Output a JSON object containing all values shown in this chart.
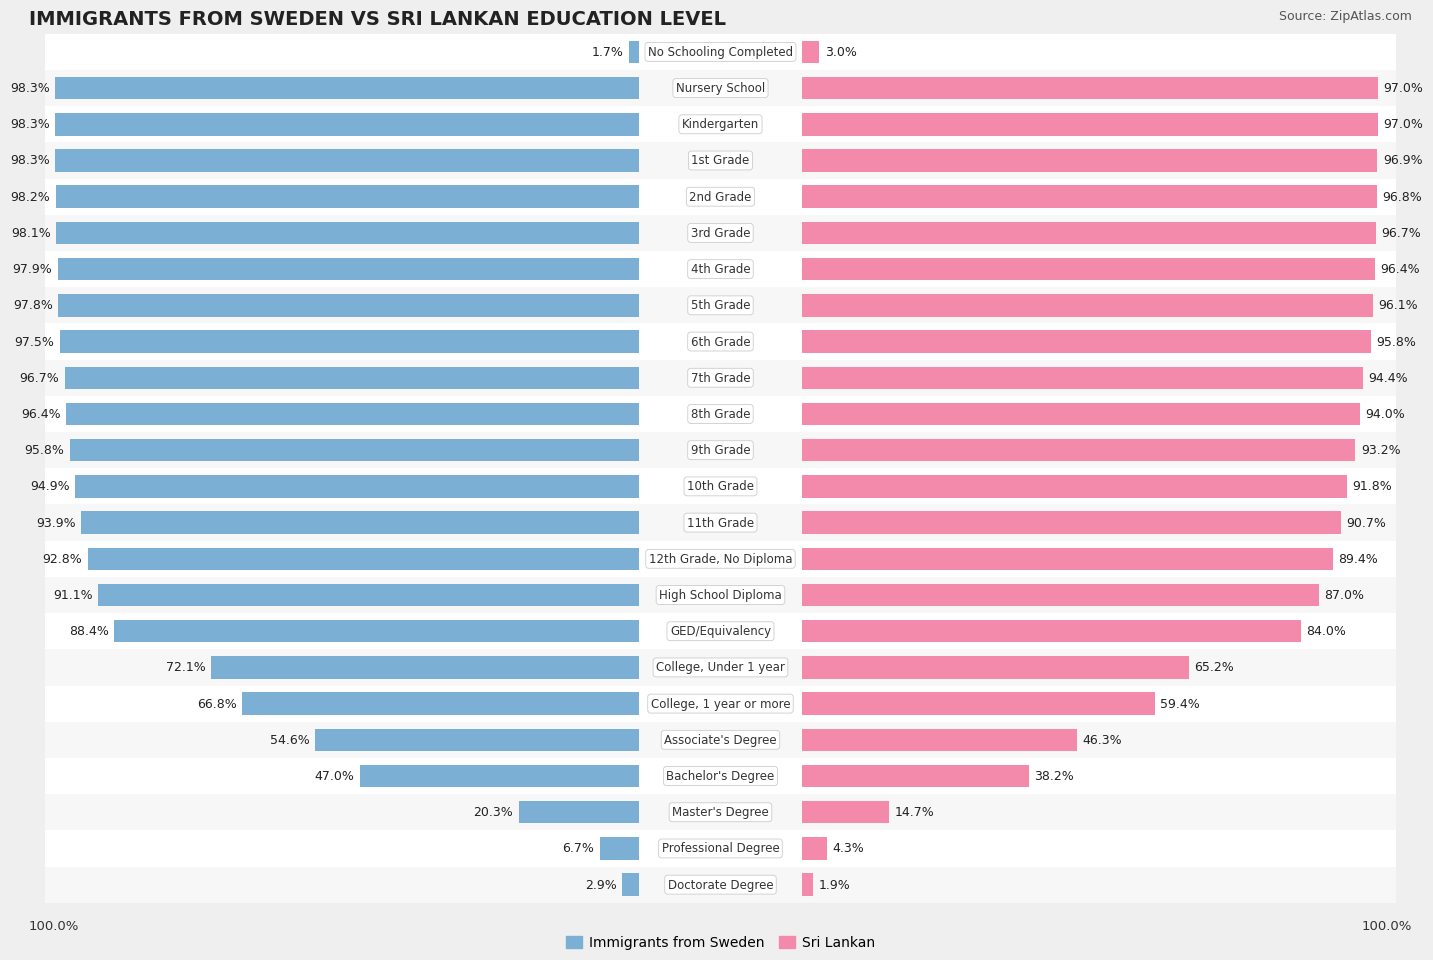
{
  "title": "IMMIGRANTS FROM SWEDEN VS SRI LANKAN EDUCATION LEVEL",
  "source": "Source: ZipAtlas.com",
  "categories": [
    "No Schooling Completed",
    "Nursery School",
    "Kindergarten",
    "1st Grade",
    "2nd Grade",
    "3rd Grade",
    "4th Grade",
    "5th Grade",
    "6th Grade",
    "7th Grade",
    "8th Grade",
    "9th Grade",
    "10th Grade",
    "11th Grade",
    "12th Grade, No Diploma",
    "High School Diploma",
    "GED/Equivalency",
    "College, Under 1 year",
    "College, 1 year or more",
    "Associate's Degree",
    "Bachelor's Degree",
    "Master's Degree",
    "Professional Degree",
    "Doctorate Degree"
  ],
  "sweden_values": [
    1.7,
    98.3,
    98.3,
    98.3,
    98.2,
    98.1,
    97.9,
    97.8,
    97.5,
    96.7,
    96.4,
    95.8,
    94.9,
    93.9,
    92.8,
    91.1,
    88.4,
    72.1,
    66.8,
    54.6,
    47.0,
    20.3,
    6.7,
    2.9
  ],
  "srilanka_values": [
    3.0,
    97.0,
    97.0,
    96.9,
    96.8,
    96.7,
    96.4,
    96.1,
    95.8,
    94.4,
    94.0,
    93.2,
    91.8,
    90.7,
    89.4,
    87.0,
    84.0,
    65.2,
    59.4,
    46.3,
    38.2,
    14.7,
    4.3,
    1.9
  ],
  "sweden_color": "#7bafd4",
  "srilanka_color": "#f48aab",
  "background_color": "#efefef",
  "row_color_odd": "#f7f7f7",
  "row_color_even": "#ffffff",
  "title_fontsize": 14,
  "source_fontsize": 9,
  "value_fontsize": 9,
  "cat_fontsize": 8.5,
  "legend_fontsize": 10
}
